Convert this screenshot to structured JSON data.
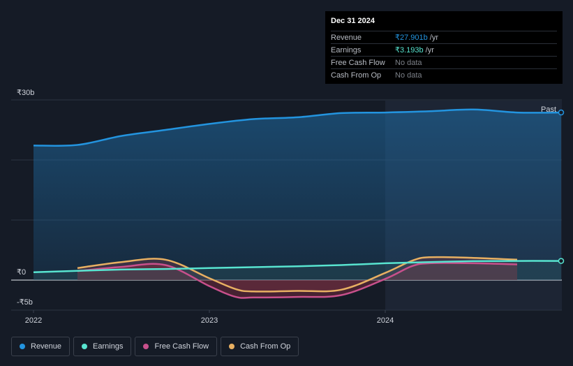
{
  "colors": {
    "revenue": "#2394df",
    "earnings": "#58e4d0",
    "free_cash_flow": "#c8508c",
    "cash_from_op": "#e8b062",
    "background": "#151b26"
  },
  "tooltip": {
    "date": "Dec 31 2024",
    "rows": [
      {
        "label": "Revenue",
        "value": "₹27.901b",
        "unit": "/yr",
        "color": "#2394df"
      },
      {
        "label": "Earnings",
        "value": "₹3.193b",
        "unit": "/yr",
        "color": "#58e4d0"
      },
      {
        "label": "Free Cash Flow",
        "value": "No data",
        "unit": "",
        "color": "#7c8088"
      },
      {
        "label": "Cash From Op",
        "value": "No data",
        "unit": "",
        "color": "#7c8088"
      }
    ]
  },
  "legend": [
    {
      "label": "Revenue",
      "color": "#2394df",
      "icon": "dot-icon"
    },
    {
      "label": "Earnings",
      "color": "#58e4d0",
      "icon": "dot-icon"
    },
    {
      "label": "Free Cash Flow",
      "color": "#c8508c",
      "icon": "dot-icon"
    },
    {
      "label": "Cash From Op",
      "color": "#e8b062",
      "icon": "dot-icon"
    }
  ],
  "chart_data": {
    "type": "area",
    "y_tick_labels": [
      {
        "value": 30,
        "label": "₹30b"
      },
      {
        "value": 0,
        "label": "₹0"
      },
      {
        "value": -5,
        "label": "-₹5b"
      }
    ],
    "x_tick_labels": [
      {
        "value": 2022.0,
        "label": "2022"
      },
      {
        "value": 2023.0,
        "label": "2023"
      },
      {
        "value": 2024.0,
        "label": "2024"
      }
    ],
    "past_label": "Past",
    "ylim": [
      -5,
      30
    ],
    "xlim": [
      2021.9,
      2025.0
    ],
    "past_start": 2024.0,
    "grid": true,
    "series": [
      {
        "name": "Revenue",
        "key": "revenue",
        "x": [
          2022.0,
          2022.25,
          2022.5,
          2022.75,
          2023.0,
          2023.25,
          2023.5,
          2023.75,
          2024.0,
          2024.25,
          2024.5,
          2024.75,
          2025.0
        ],
        "values": [
          22.4,
          22.5,
          24.0,
          25.0,
          26.0,
          26.8,
          27.1,
          27.8,
          27.9,
          28.1,
          28.4,
          27.9,
          27.9
        ]
      },
      {
        "name": "Earnings",
        "key": "earnings",
        "x": [
          2022.0,
          2022.25,
          2022.5,
          2022.75,
          2023.0,
          2023.25,
          2023.5,
          2023.75,
          2024.0,
          2024.25,
          2024.5,
          2024.75,
          2025.0
        ],
        "values": [
          1.3,
          1.55,
          1.75,
          1.85,
          2.0,
          2.15,
          2.3,
          2.5,
          2.8,
          3.0,
          3.15,
          3.19,
          3.19
        ]
      },
      {
        "name": "Free Cash Flow",
        "key": "free_cash_flow",
        "x": [
          2022.25,
          2022.5,
          2022.75,
          2023.0,
          2023.15,
          2023.25,
          2023.5,
          2023.75,
          2024.0,
          2024.15,
          2024.25,
          2024.5,
          2024.75
        ],
        "values": [
          1.5,
          2.2,
          2.5,
          -1.0,
          -2.8,
          -2.9,
          -2.8,
          -2.5,
          0.2,
          2.3,
          2.8,
          2.8,
          2.6
        ]
      },
      {
        "name": "Cash From Op",
        "key": "cash_from_op",
        "x": [
          2022.25,
          2022.5,
          2022.75,
          2023.0,
          2023.15,
          2023.25,
          2023.5,
          2023.75,
          2024.0,
          2024.15,
          2024.25,
          2024.5,
          2024.75
        ],
        "values": [
          2.0,
          3.0,
          3.4,
          0.3,
          -1.5,
          -1.9,
          -1.8,
          -1.6,
          1.2,
          3.2,
          3.8,
          3.7,
          3.4
        ]
      }
    ]
  }
}
